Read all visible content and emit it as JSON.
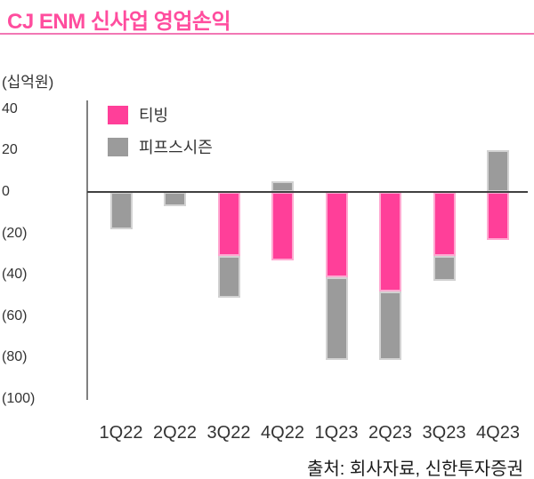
{
  "header": {
    "title": "CJ ENM 신사업 영업손익"
  },
  "chart_data": {
    "type": "bar",
    "stacked": true,
    "title": "CJ ENM 신사업 영업손익",
    "unit_label": "(십억원)",
    "categories": [
      "1Q22",
      "2Q22",
      "3Q22",
      "4Q22",
      "1Q23",
      "2Q23",
      "3Q23",
      "4Q23"
    ],
    "series": [
      {
        "name": "티빙",
        "color": "#ff3f99",
        "values": [
          0,
          0,
          -31,
          -33,
          -41,
          -48,
          -31,
          -23
        ]
      },
      {
        "name": "피프스시즌",
        "color": "#9b9b9b",
        "values": [
          -18,
          -7,
          -20,
          5,
          -40,
          -33,
          -12,
          20
        ]
      }
    ],
    "yticks": {
      "labels": [
        "40",
        "20",
        "0",
        "(20)",
        "(40)",
        "(60)",
        "(80)",
        "(100)"
      ],
      "values": [
        40,
        20,
        0,
        -20,
        -40,
        -60,
        -80,
        -100
      ]
    },
    "ylim": [
      -100,
      44
    ],
    "grid": false,
    "legend_position": "top-left-inside"
  },
  "footer": {
    "source": "출처: 회사자료, 신한투자증권"
  },
  "colors": {
    "title": "#ff4d9e",
    "title_rule": "#f277b4",
    "axis": "#808080",
    "zero_line": "#404040",
    "text": "#333333"
  }
}
